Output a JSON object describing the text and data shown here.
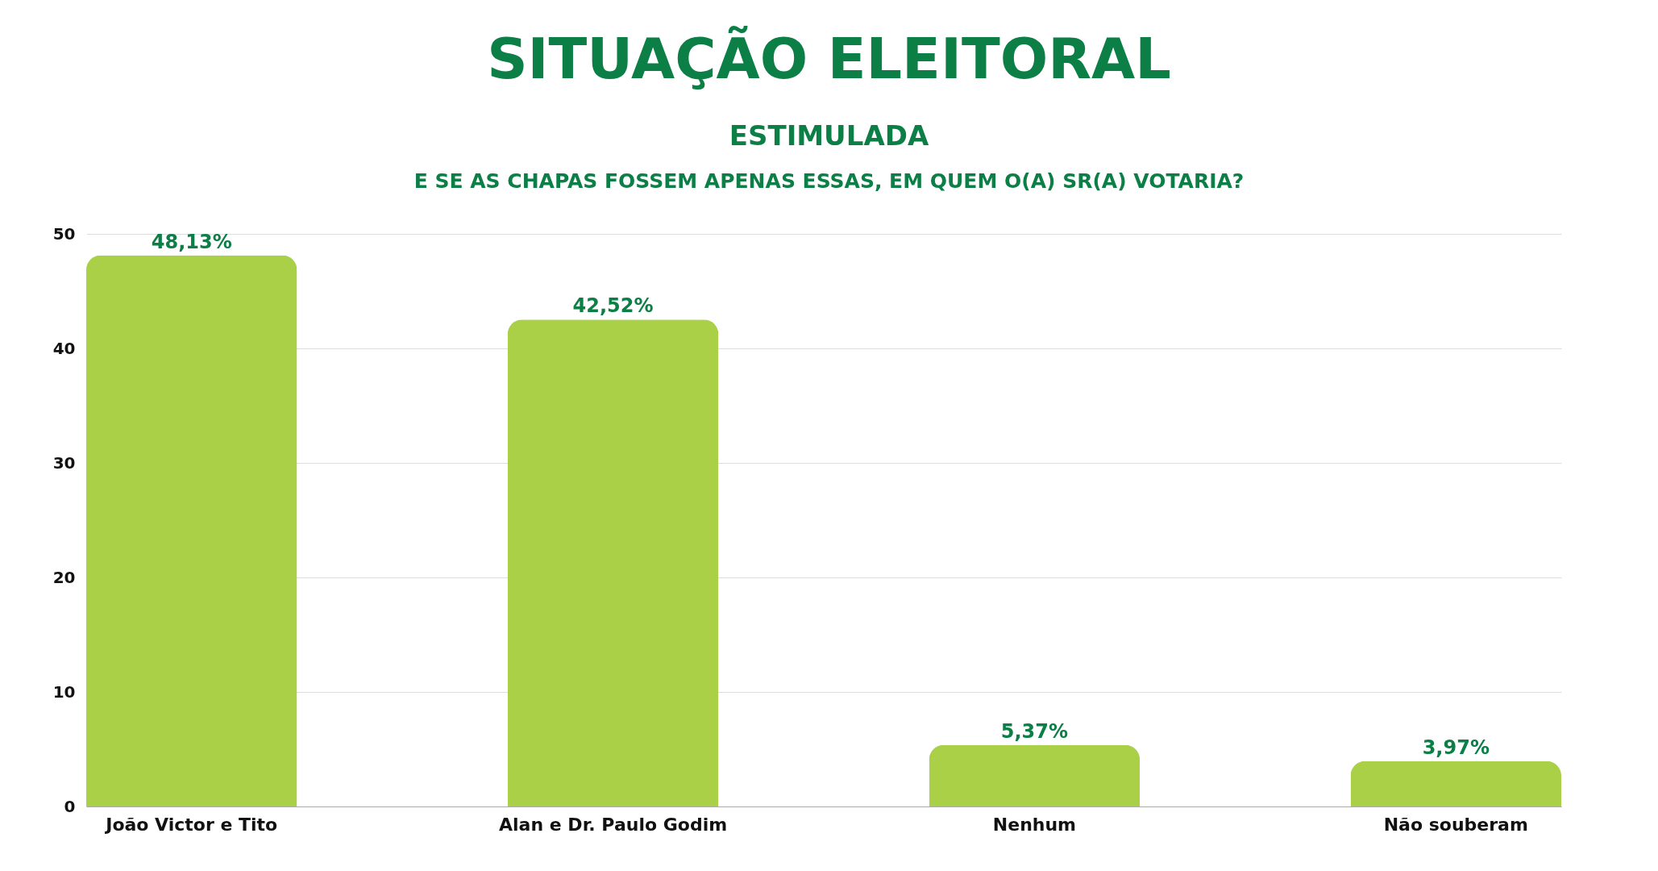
{
  "chart_data": {
    "type": "bar",
    "title": "SITUAÇÃO ELEITORAL",
    "subtitle": "ESTIMULADA",
    "annotations": [
      "E SE AS CHAPAS FOSSEM APENAS ESSAS, EM QUEM O(A) SR(A) VOTARIA?"
    ],
    "categories": [
      "João Victor e Tito",
      "Alan e Dr. Paulo Godim",
      "Nenhum",
      "Não souberam"
    ],
    "values": [
      48.13,
      42.52,
      5.37,
      3.97
    ],
    "value_labels": [
      "48,13%",
      "42,52%",
      "5,37%",
      "3,97%"
    ],
    "color": "#a9d046",
    "ylim": [
      0,
      50
    ],
    "yticks": [
      0,
      10,
      20,
      30,
      40,
      50
    ],
    "grid": "y"
  }
}
